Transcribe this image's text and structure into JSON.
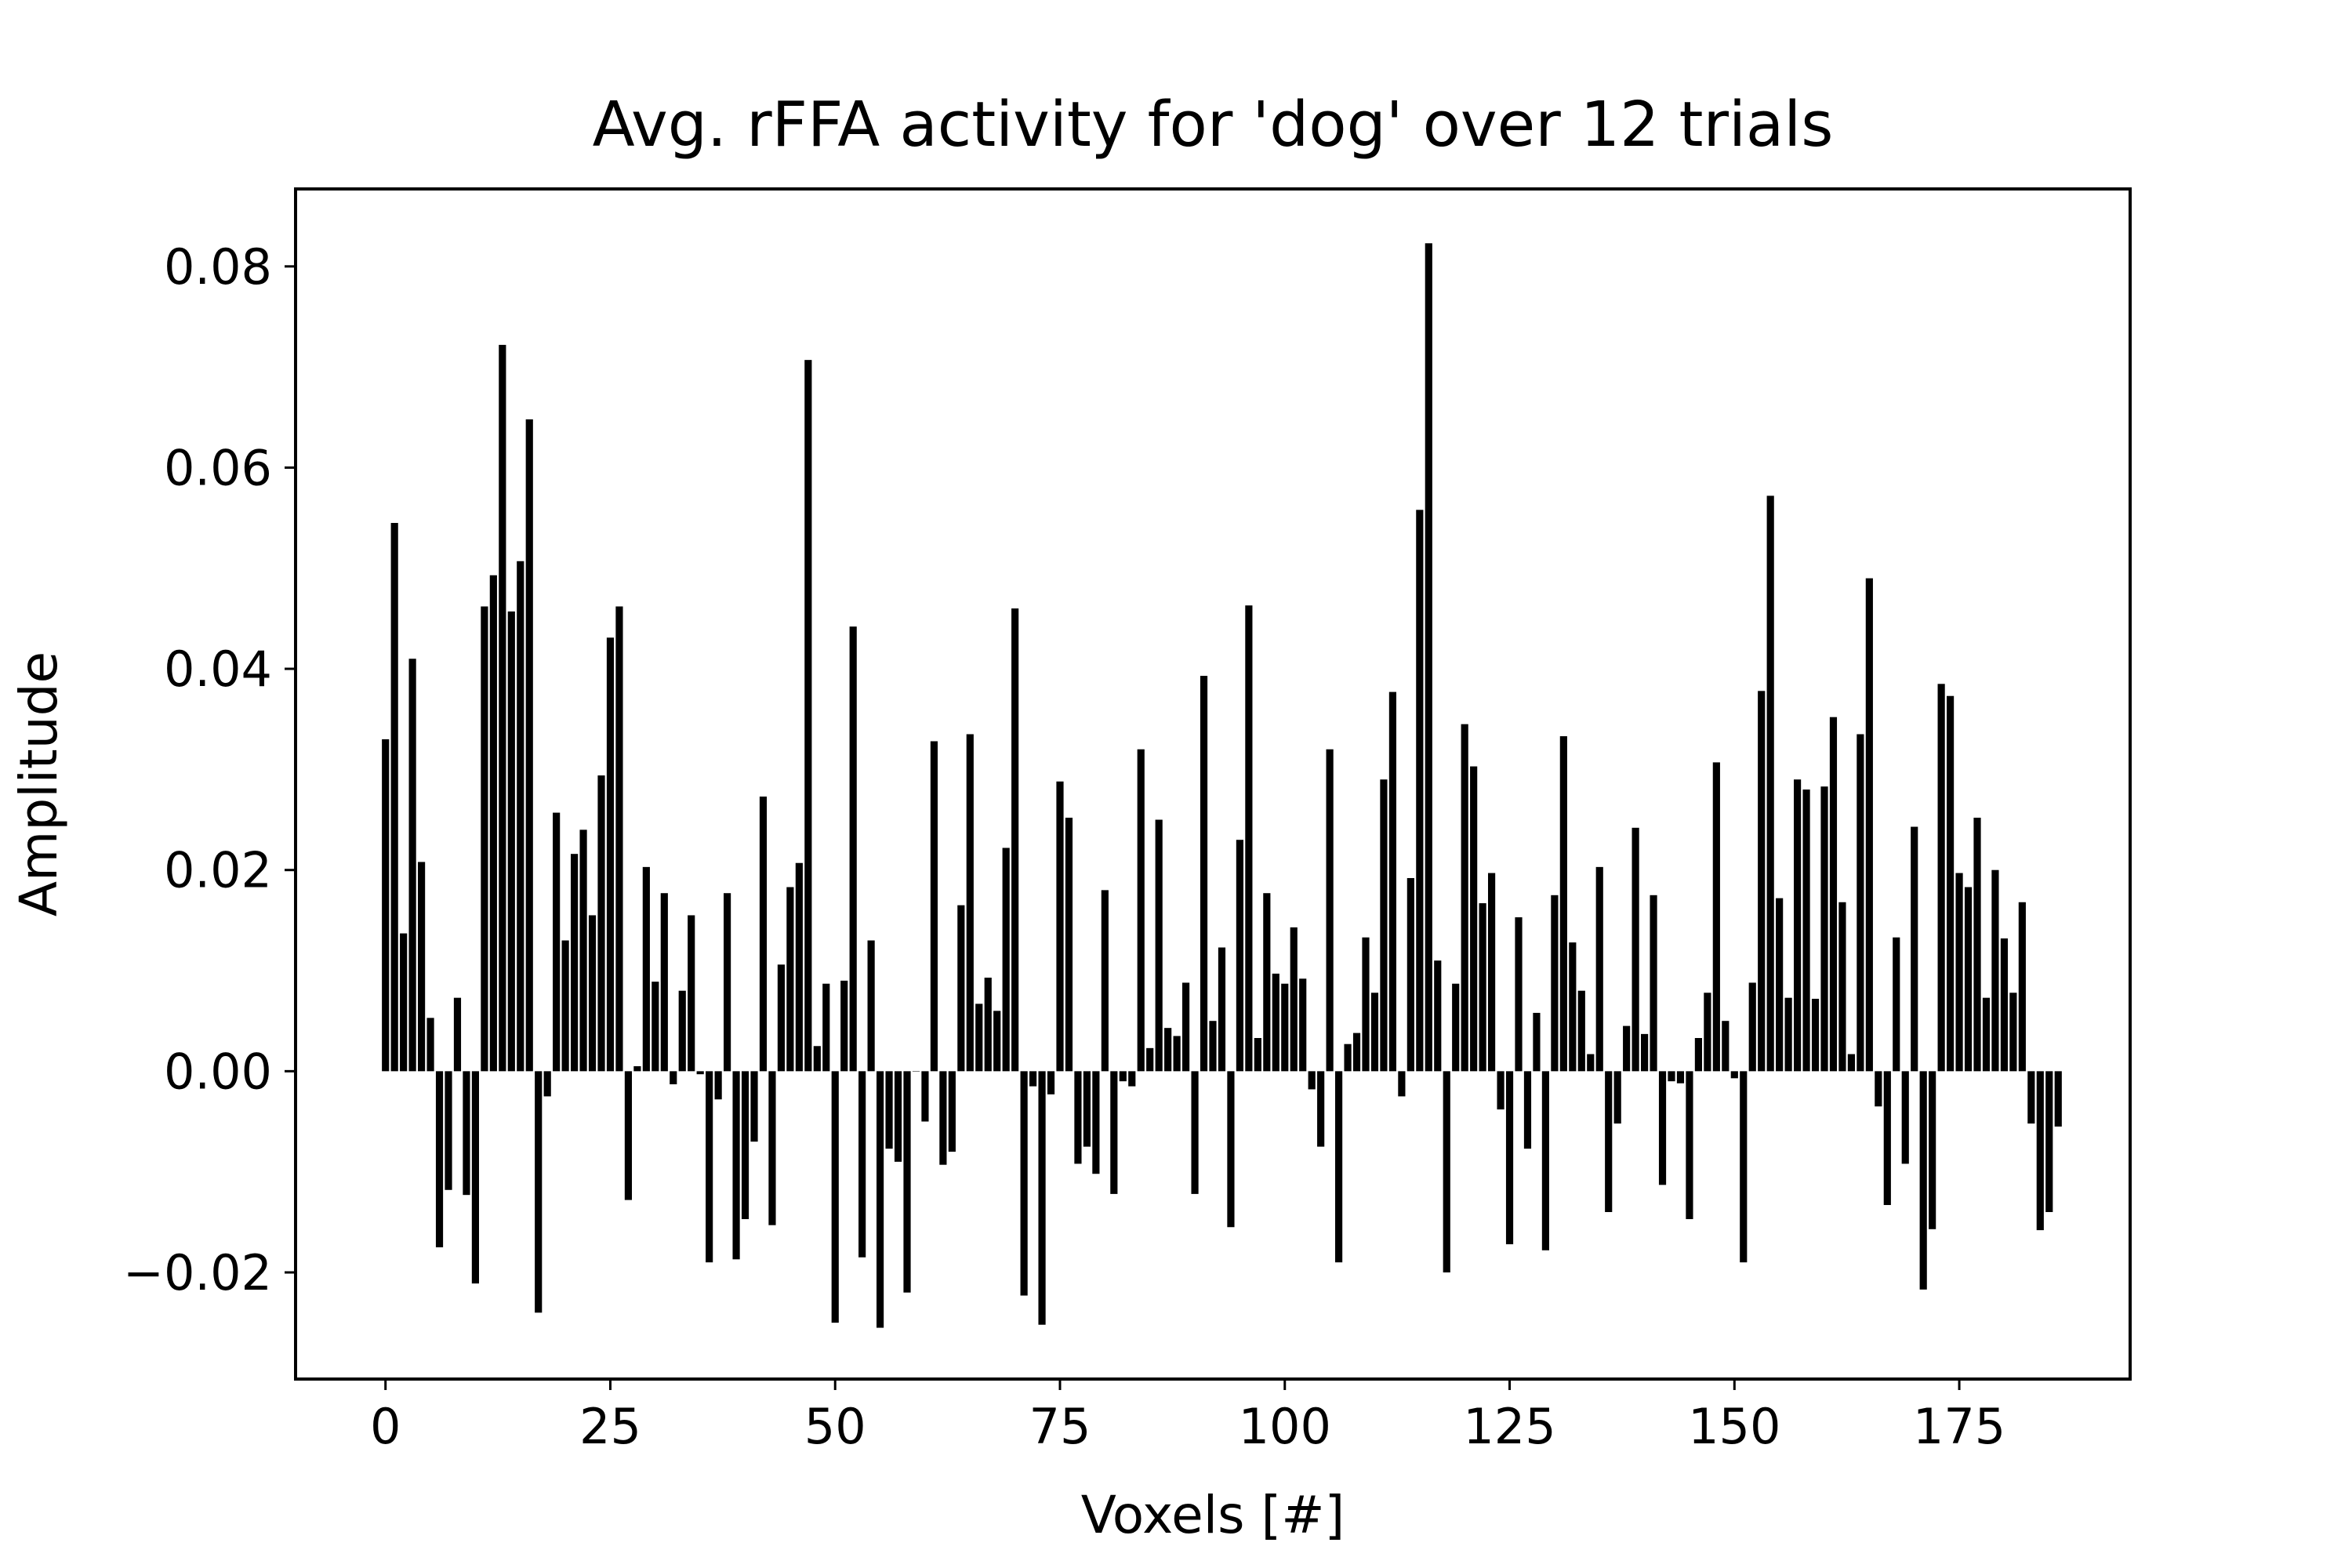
{
  "chart_data": {
    "type": "bar",
    "title": "Avg. rFFA activity for 'dog' over 12 trials",
    "xlabel": "Voxels [#]",
    "ylabel": "Amplitude",
    "bar_color": "#000000",
    "xlim": [
      -10,
      194
    ],
    "ylim": [
      -0.0306,
      0.0877
    ],
    "xticks": [
      0,
      25,
      50,
      75,
      100,
      125,
      150,
      175
    ],
    "xtick_labels": [
      "0",
      "25",
      "50",
      "75",
      "100",
      "125",
      "150",
      "175"
    ],
    "yticks": [
      -0.02,
      0.0,
      0.02,
      0.04,
      0.06,
      0.08
    ],
    "ytick_labels": [
      "−0.02",
      "0.00",
      "0.02",
      "0.04",
      "0.06",
      "0.08"
    ],
    "grid": false,
    "x_start": 0,
    "values": [
      0.033,
      0.0545,
      0.0137,
      0.041,
      0.0208,
      0.0053,
      -0.0175,
      -0.0118,
      0.0073,
      -0.0123,
      -0.0211,
      0.0462,
      0.0493,
      0.0722,
      0.0457,
      0.0507,
      0.0648,
      -0.024,
      -0.0025,
      0.0257,
      0.013,
      0.0216,
      0.024,
      0.0155,
      0.0294,
      0.0431,
      0.0462,
      -0.0128,
      0.0005,
      0.0203,
      0.0089,
      0.0177,
      -0.0013,
      0.008,
      0.0155,
      -0.0003,
      -0.019,
      -0.0028,
      0.0177,
      -0.0187,
      -0.0147,
      -0.007,
      0.0273,
      -0.0153,
      0.0106,
      0.0183,
      0.0207,
      0.0707,
      0.0025,
      0.0087,
      -0.025,
      0.009,
      0.0442,
      -0.0185,
      0.013,
      -0.0255,
      -0.0077,
      -0.009,
      -0.022,
      0.0,
      -0.005,
      0.0328,
      -0.0093,
      -0.008,
      0.0165,
      0.0335,
      0.0067,
      0.0093,
      0.006,
      0.0222,
      0.046,
      -0.0223,
      -0.0015,
      -0.0252,
      -0.0023,
      0.0288,
      0.0252,
      -0.0092,
      -0.0075,
      -0.0102,
      0.018,
      -0.0122,
      -0.001,
      -0.0015,
      0.032,
      0.0023,
      0.025,
      0.0043,
      0.0035,
      0.0088,
      -0.0122,
      0.0393,
      0.005,
      0.0123,
      -0.0155,
      0.023,
      0.0463,
      0.0033,
      0.0177,
      0.0097,
      0.0087,
      0.0143,
      0.0092,
      -0.0018,
      -0.0075,
      0.032,
      -0.019,
      0.0027,
      0.0038,
      0.0133,
      0.0078,
      0.029,
      0.0377,
      -0.0025,
      0.0192,
      0.0558,
      0.0823,
      0.011,
      -0.02,
      0.0087,
      0.0345,
      0.0303,
      0.0167,
      0.0197,
      -0.0038,
      -0.0172,
      0.0153,
      -0.0077,
      0.0058,
      -0.0178,
      0.0175,
      0.0333,
      0.0128,
      0.008,
      0.0017,
      0.0203,
      -0.014,
      -0.0052,
      0.0045,
      0.0242,
      0.0037,
      0.0175,
      -0.0113,
      -0.001,
      -0.0012,
      -0.0147,
      0.0033,
      0.0078,
      0.0307,
      0.005,
      -0.0007,
      -0.019,
      0.0088,
      0.0378,
      0.0572,
      0.0172,
      0.0073,
      0.029,
      0.028,
      0.0072,
      0.0283,
      0.0352,
      0.0168,
      0.0017,
      0.0335,
      0.049,
      -0.0035,
      -0.0133,
      0.0133,
      -0.0092,
      0.0243,
      -0.0217,
      -0.0157,
      0.0385,
      0.0373,
      0.0197,
      0.0183,
      0.0252,
      0.0073,
      0.02,
      0.0132,
      0.0078,
      0.0168,
      -0.0052,
      -0.0158,
      -0.014,
      -0.0055
    ]
  }
}
